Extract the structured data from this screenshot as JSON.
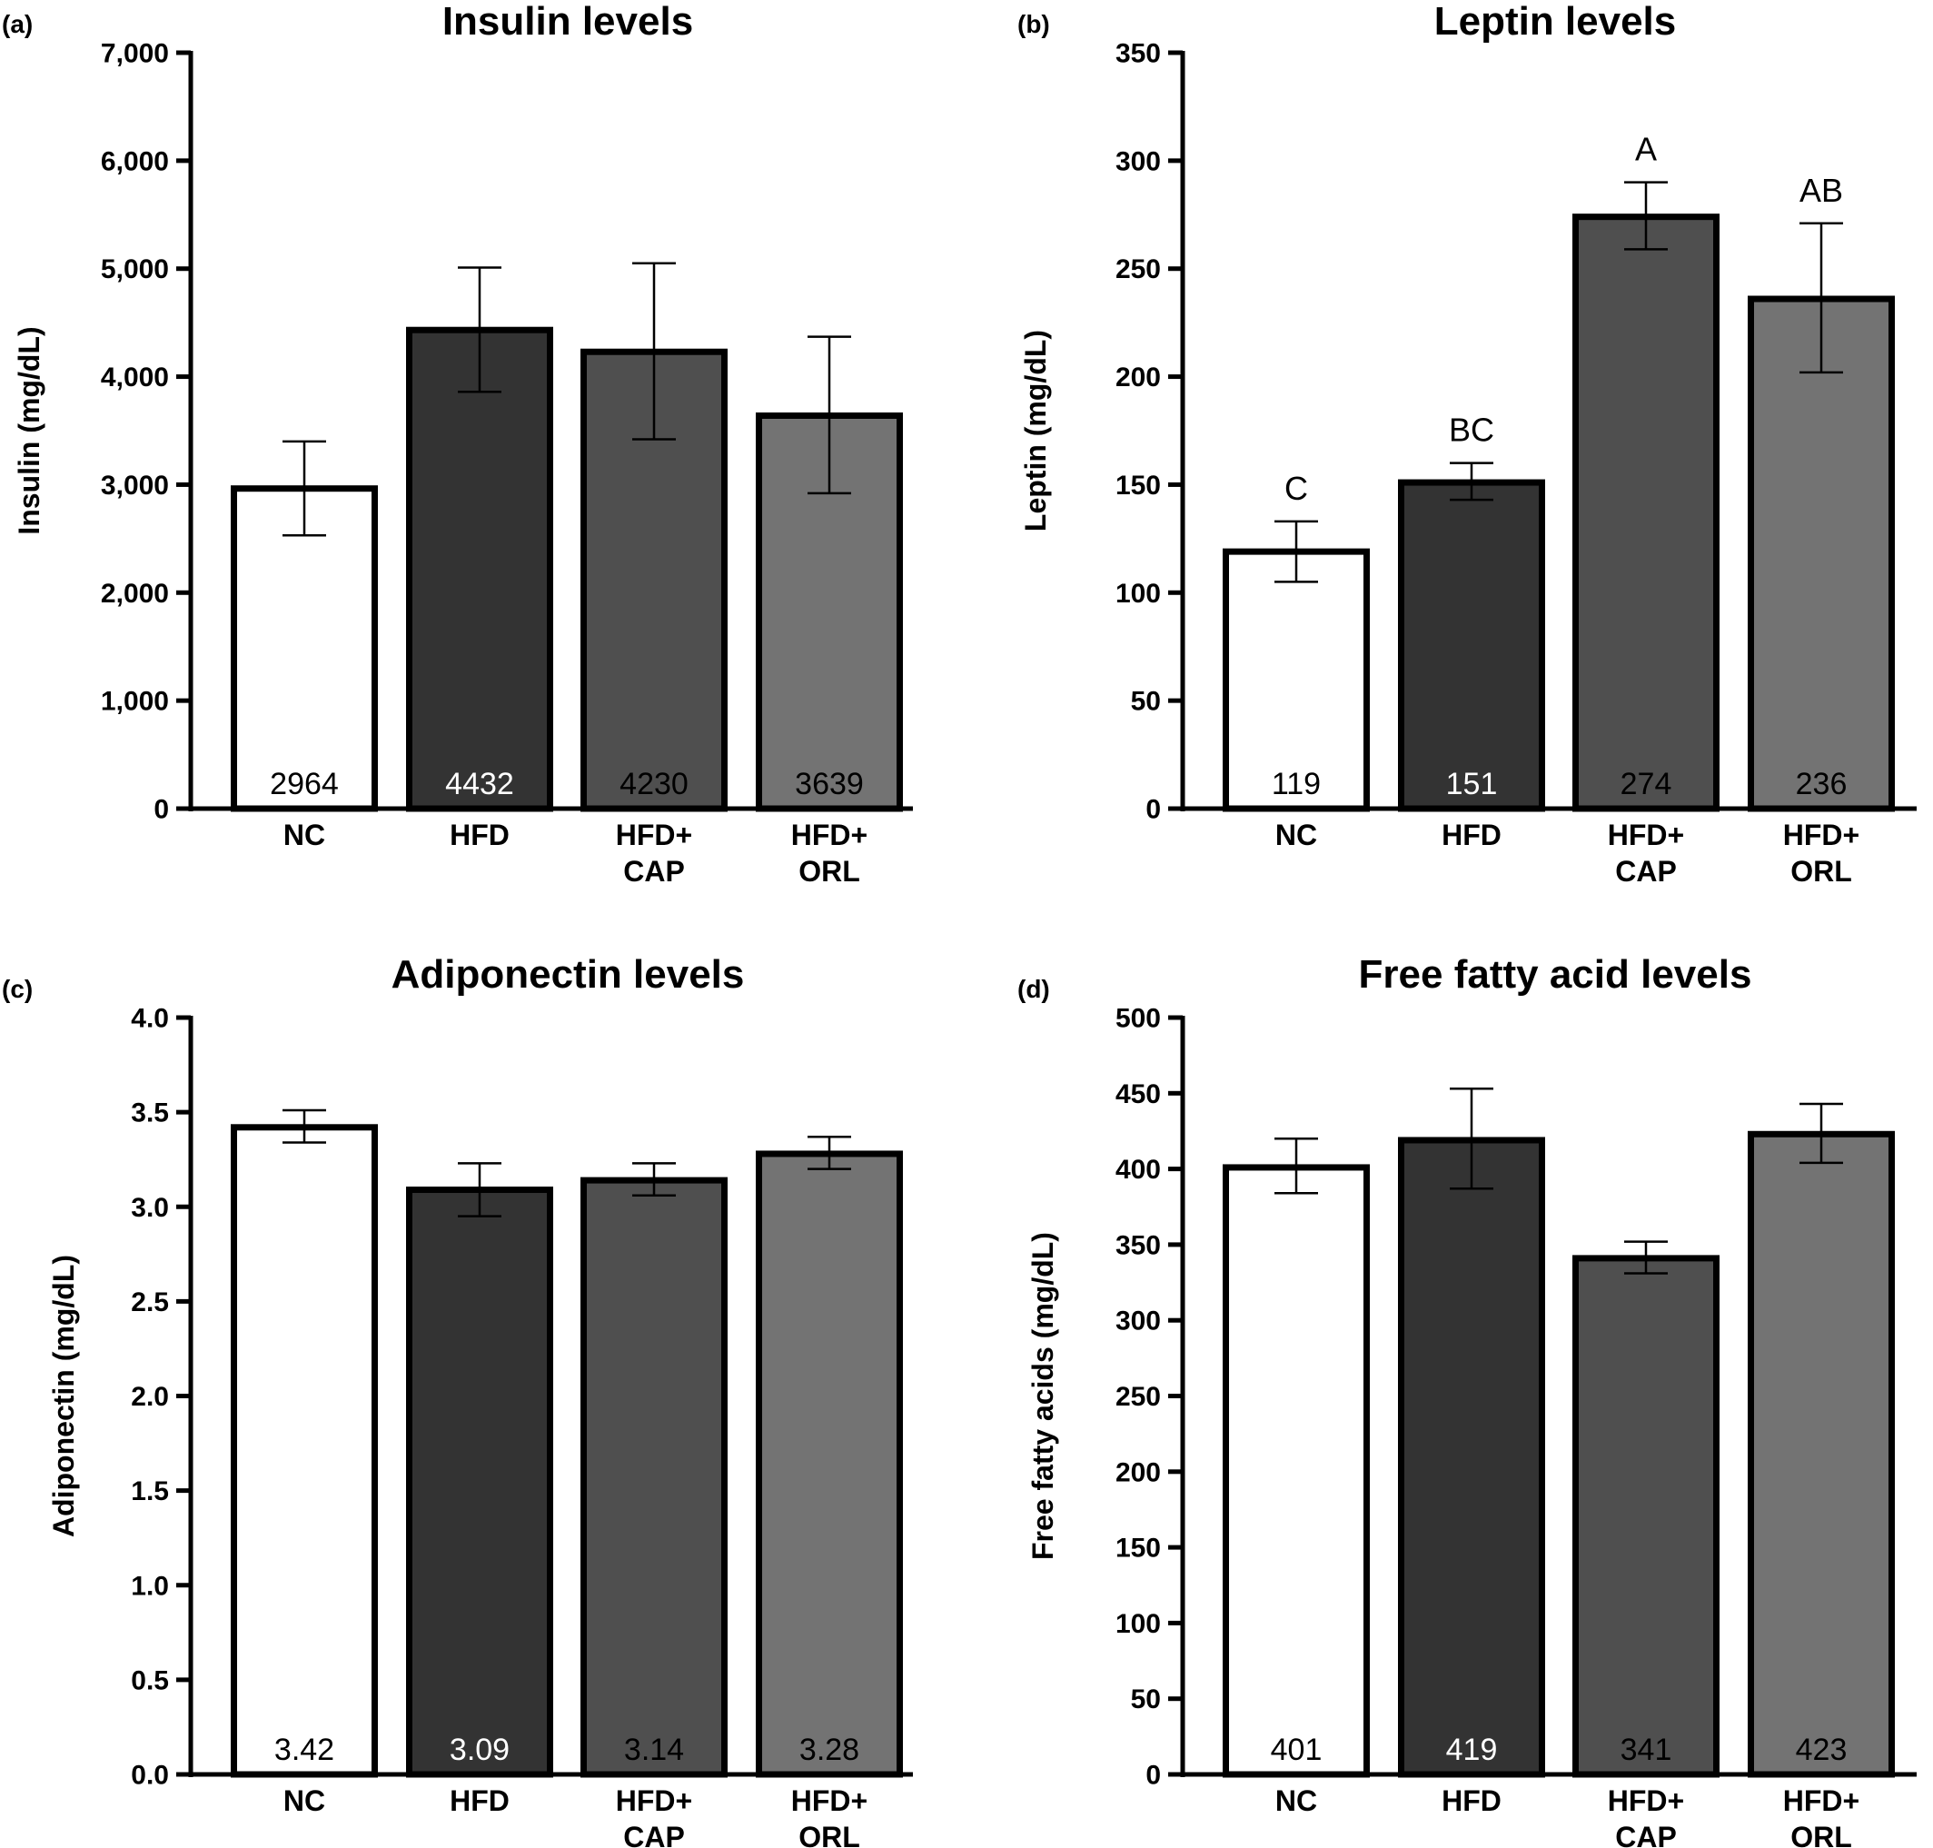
{
  "chart_data": [
    {
      "type": "bar",
      "panel": "(a)",
      "title": "Insulin levels",
      "ylabel": "Insulin (mg/dL)",
      "ylim": [
        0,
        7000
      ],
      "yticks": [
        "0",
        "1,000",
        "2,000",
        "3,000",
        "4,000",
        "5,000",
        "6,000",
        "7,000"
      ],
      "ytick_values": [
        0,
        1000,
        2000,
        3000,
        4000,
        5000,
        6000,
        7000
      ],
      "categories": [
        [
          "NC"
        ],
        [
          "HFD"
        ],
        [
          "HFD+",
          "CAP"
        ],
        [
          "HFD+",
          "ORL"
        ]
      ],
      "values": [
        2964,
        4432,
        4230,
        3639
      ],
      "value_labels": [
        "2964",
        "4432",
        "4230",
        "3639"
      ],
      "errors": [
        [
          2530,
          3400
        ],
        [
          3860,
          5010
        ],
        [
          3420,
          5050
        ],
        [
          2920,
          4370
        ]
      ],
      "significance": [],
      "colors": [
        "#ffffff",
        "#333333",
        "#4f4f4f",
        "#737373"
      ],
      "label_colors": [
        "#000000",
        "#ffffff",
        "#000000",
        "#000000"
      ]
    },
    {
      "type": "bar",
      "panel": "(b)",
      "title": "Leptin levels",
      "ylabel": "Leptin (mg/dL)",
      "ylim": [
        0,
        350
      ],
      "yticks": [
        "0",
        "50",
        "100",
        "150",
        "200",
        "250",
        "300",
        "350"
      ],
      "ytick_values": [
        0,
        50,
        100,
        150,
        200,
        250,
        300,
        350
      ],
      "categories": [
        [
          "NC"
        ],
        [
          "HFD"
        ],
        [
          "HFD+",
          "CAP"
        ],
        [
          "HFD+",
          "ORL"
        ]
      ],
      "values": [
        119,
        151,
        274,
        236
      ],
      "value_labels": [
        "119",
        "151",
        "274",
        "236"
      ],
      "errors": [
        [
          105,
          133
        ],
        [
          143,
          160
        ],
        [
          259,
          290
        ],
        [
          202,
          271
        ]
      ],
      "significance": [
        "C",
        "BC",
        "A",
        "AB"
      ],
      "colors": [
        "#ffffff",
        "#333333",
        "#4f4f4f",
        "#737373"
      ],
      "label_colors": [
        "#000000",
        "#ffffff",
        "#000000",
        "#000000"
      ]
    },
    {
      "type": "bar",
      "panel": "(c)",
      "title": "Adiponectin levels",
      "ylabel": "Adiponectin (mg/dL)",
      "ylim": [
        0,
        4
      ],
      "yticks": [
        "0.0",
        "0.5",
        "1.0",
        "1.5",
        "2.0",
        "2.5",
        "3.0",
        "3.5",
        "4.0"
      ],
      "ytick_values": [
        0,
        0.5,
        1,
        1.5,
        2,
        2.5,
        3,
        3.5,
        4
      ],
      "categories": [
        [
          "NC"
        ],
        [
          "HFD"
        ],
        [
          "HFD+",
          "CAP"
        ],
        [
          "HFD+",
          "ORL"
        ]
      ],
      "values": [
        3.42,
        3.09,
        3.14,
        3.28
      ],
      "value_labels": [
        "3.42",
        "3.09",
        "3.14",
        "3.28"
      ],
      "errors": [
        [
          3.34,
          3.51
        ],
        [
          2.95,
          3.23
        ],
        [
          3.06,
          3.23
        ],
        [
          3.2,
          3.37
        ]
      ],
      "significance": [],
      "colors": [
        "#ffffff",
        "#333333",
        "#4f4f4f",
        "#737373"
      ],
      "label_colors": [
        "#000000",
        "#ffffff",
        "#000000",
        "#000000"
      ]
    },
    {
      "type": "bar",
      "panel": "(d)",
      "title": "Free fatty acid levels",
      "ylabel": "Free fatty acids (mg/dL)",
      "ylim": [
        0,
        500
      ],
      "yticks": [
        "0",
        "50",
        "100",
        "150",
        "200",
        "250",
        "300",
        "350",
        "400",
        "450",
        "500"
      ],
      "ytick_values": [
        0,
        50,
        100,
        150,
        200,
        250,
        300,
        350,
        400,
        450,
        500
      ],
      "categories": [
        [
          "NC"
        ],
        [
          "HFD"
        ],
        [
          "HFD+",
          "CAP"
        ],
        [
          "HFD+",
          "ORL"
        ]
      ],
      "values": [
        401,
        419,
        341,
        423
      ],
      "value_labels": [
        "401",
        "419",
        "341",
        "423"
      ],
      "errors": [
        [
          384,
          420
        ],
        [
          387,
          453
        ],
        [
          331,
          352
        ],
        [
          404,
          443
        ]
      ],
      "significance": [],
      "colors": [
        "#ffffff",
        "#333333",
        "#4f4f4f",
        "#737373"
      ],
      "label_colors": [
        "#000000",
        "#ffffff",
        "#000000",
        "#000000"
      ]
    }
  ]
}
